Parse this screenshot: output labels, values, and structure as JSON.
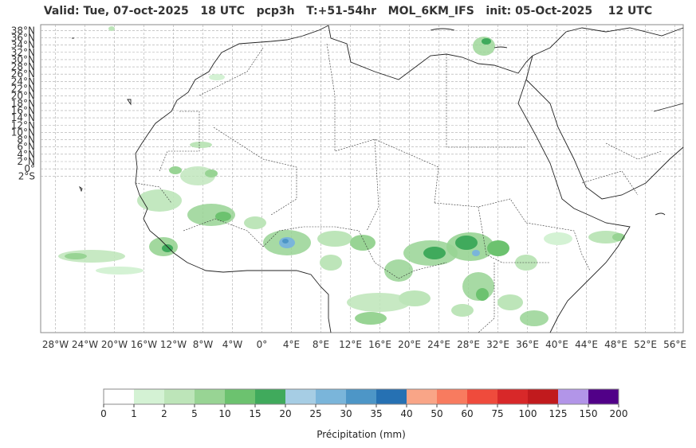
{
  "title": "Valid: Tue, 07-oct-2025   18 UTC   pcp3h   T:+51-54hr   MOL_6KM_IFS   init: 05-Oct-2025    12 UTC",
  "lat_labels": [
    "38°N",
    "36°N",
    "34°N",
    "32°N",
    "30°N",
    "28°N",
    "26°N",
    "24°N",
    "22°N",
    "20°N",
    "18°N",
    "16°N",
    "14°N",
    "12°N",
    "10°N",
    "8°N",
    "6°N",
    "4°N",
    "2°N",
    "0°",
    "2°S"
  ],
  "lon_labels": [
    "28°W",
    "24°W",
    "20°W",
    "16°W",
    "12°W",
    "8°W",
    "4°W",
    "0°",
    "4°E",
    "8°E",
    "12°E",
    "16°E",
    "20°E",
    "24°E",
    "28°E",
    "32°E",
    "36°E",
    "40°E",
    "44°E",
    "48°E",
    "52°E",
    "56°E"
  ],
  "colorbar": {
    "label": "Précipitation (mm)",
    "ticks": [
      "0",
      "1",
      "2",
      "5",
      "10",
      "15",
      "20",
      "25",
      "30",
      "35",
      "40",
      "50",
      "60",
      "75",
      "100",
      "125",
      "150",
      "200"
    ],
    "colors": [
      "#ffffff",
      "#d4f2d4",
      "#bde5b9",
      "#98d494",
      "#6cc26f",
      "#40aa5c",
      "#a6cde4",
      "#7ab5da",
      "#4d96c7",
      "#2671b3",
      "#f9a587",
      "#f87b5f",
      "#ef4b3c",
      "#d82829",
      "#c11a1d",
      "#b295e8",
      "#510088"
    ]
  }
}
